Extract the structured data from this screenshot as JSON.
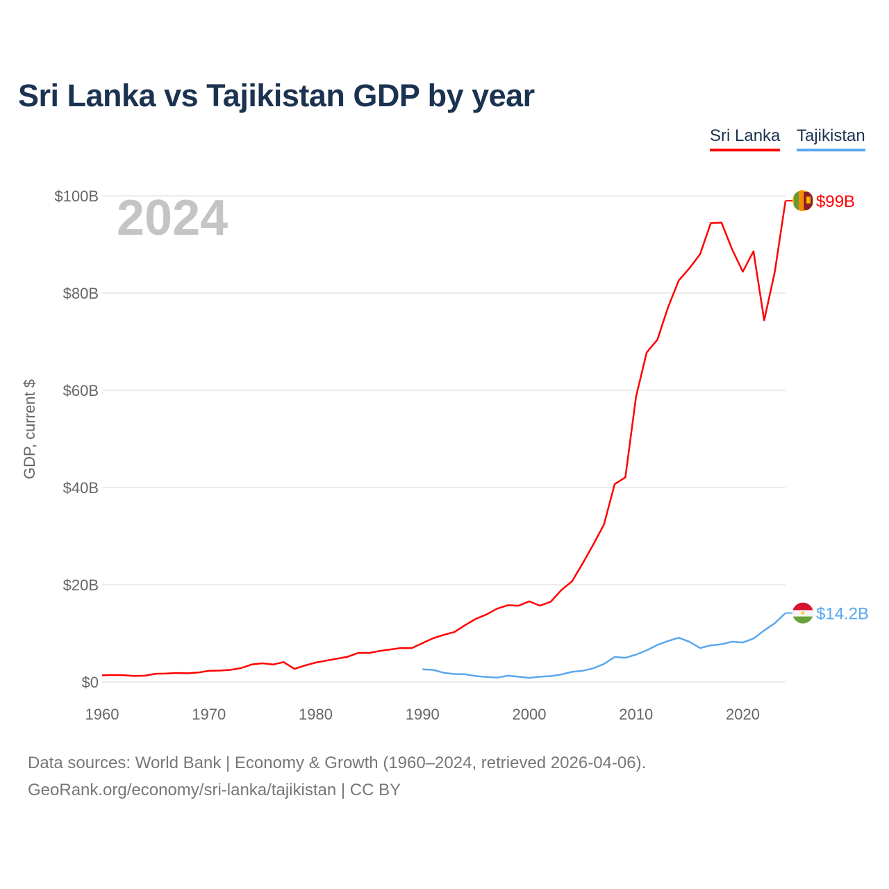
{
  "chart_data": {
    "type": "line",
    "title": "Sri Lanka vs Tajikistan GDP by year",
    "ylabel": "GDP, current $",
    "xlabel": "",
    "year_display": "2024",
    "xlim": [
      1960,
      2024
    ],
    "ylim": [
      0,
      100
    ],
    "x_ticks": [
      "1960",
      "1970",
      "1980",
      "1990",
      "2000",
      "2010",
      "2020"
    ],
    "y_ticks": [
      {
        "v": 0,
        "label": "$0"
      },
      {
        "v": 20,
        "label": "$20B"
      },
      {
        "v": 40,
        "label": "$40B"
      },
      {
        "v": 60,
        "label": "$60B"
      },
      {
        "v": 80,
        "label": "$80B"
      },
      {
        "v": 100,
        "label": "$100B"
      }
    ],
    "grid": true,
    "legend": "top-right",
    "series": [
      {
        "name": "Sri Lanka",
        "color": "#ff0000",
        "end_label": "$99B",
        "start": 1960,
        "values": [
          1.4,
          1.45,
          1.42,
          1.24,
          1.3,
          1.7,
          1.75,
          1.85,
          1.8,
          1.96,
          2.3,
          2.35,
          2.5,
          2.85,
          3.6,
          3.85,
          3.6,
          4.1,
          2.7,
          3.4,
          4.0,
          4.4,
          4.8,
          5.2,
          6.0,
          5.98,
          6.4,
          6.7,
          7.0,
          6.98,
          8.0,
          9.0,
          9.7,
          10.3,
          11.7,
          13.0,
          13.9,
          15.1,
          15.8,
          15.7,
          16.6,
          15.7,
          16.5,
          18.9,
          20.7,
          24.4,
          28.3,
          32.4,
          40.7,
          42.1,
          58.7,
          67.8,
          70.4,
          77.1,
          82.6,
          85.1,
          88.0,
          94.4,
          94.5,
          89.0,
          84.4,
          88.6,
          74.4,
          84.4,
          99.0
        ]
      },
      {
        "name": "Tajikistan",
        "color": "#5aa8ee",
        "end_label": "$14.2B",
        "start": 1990,
        "values": [
          2.6,
          2.5,
          1.9,
          1.65,
          1.6,
          1.23,
          1.04,
          0.92,
          1.32,
          1.09,
          0.86,
          1.08,
          1.22,
          1.55,
          2.08,
          2.31,
          2.83,
          3.72,
          5.16,
          4.98,
          5.64,
          6.52,
          7.63,
          8.45,
          9.11,
          8.27,
          6.99,
          7.54,
          7.77,
          8.3,
          8.13,
          8.94,
          10.6,
          12.1,
          14.2
        ]
      }
    ]
  },
  "footer": {
    "line1": "Data sources: World Bank | Economy & Growth (1960–2024, retrieved 2026-04-06).",
    "line2": "GeoRank.org/economy/sri-lanka/tajikistan | CC BY"
  }
}
